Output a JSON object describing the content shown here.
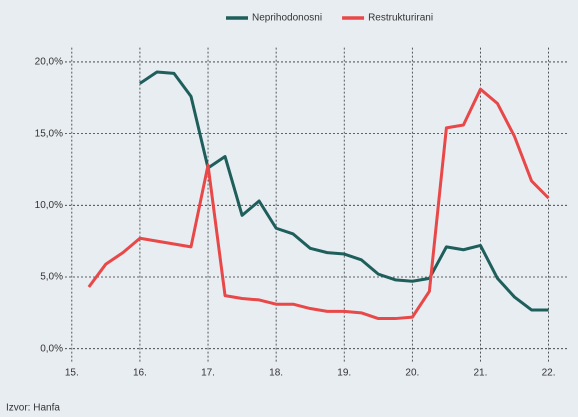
{
  "chart_data": {
    "type": "line",
    "x": [
      15.25,
      15.5,
      15.75,
      16,
      16.25,
      16.5,
      16.75,
      17,
      17.25,
      17.5,
      17.75,
      18,
      18.25,
      18.5,
      18.75,
      19,
      19.25,
      19.5,
      19.75,
      20,
      20.25,
      20.5,
      20.75,
      21,
      21.25,
      21.5,
      21.75,
      22
    ],
    "series": [
      {
        "name": "Neprihodonosni",
        "color": "#1e5e5b",
        "values": [
          null,
          null,
          null,
          18.5,
          19.3,
          19.2,
          17.6,
          12.6,
          13.4,
          9.3,
          10.3,
          8.4,
          8.0,
          7.0,
          6.7,
          6.6,
          6.2,
          5.2,
          4.8,
          4.7,
          4.9,
          7.1,
          6.9,
          7.2,
          4.9,
          3.6,
          2.7,
          2.7
        ]
      },
      {
        "name": "Restrukturirani",
        "color": "#e84848",
        "values": [
          4.3,
          5.9,
          6.7,
          7.7,
          7.5,
          7.3,
          7.1,
          12.8,
          3.7,
          3.5,
          3.4,
          3.1,
          3.1,
          2.8,
          2.6,
          2.6,
          2.5,
          2.1,
          2.1,
          2.2,
          4.0,
          15.4,
          15.6,
          18.1,
          17.1,
          14.8,
          11.7,
          10.5
        ]
      }
    ],
    "xlim": [
      14.9,
      22.3
    ],
    "xticks": [
      {
        "value": 15,
        "label": "15."
      },
      {
        "value": 16,
        "label": "16."
      },
      {
        "value": 17,
        "label": "17."
      },
      {
        "value": 18,
        "label": "18."
      },
      {
        "value": 19,
        "label": "19."
      },
      {
        "value": 20,
        "label": "20."
      },
      {
        "value": 21,
        "label": "21."
      },
      {
        "value": 22,
        "label": "22."
      }
    ],
    "ylim": [
      -1,
      21
    ],
    "yticks": [
      {
        "value": 0,
        "label": "0,0%"
      },
      {
        "value": 5,
        "label": "5,0%"
      },
      {
        "value": 10,
        "label": "10,0%"
      },
      {
        "value": 15,
        "label": "15,0%"
      },
      {
        "value": 20,
        "label": "20,0%"
      }
    ],
    "grid": true,
    "legend": "top",
    "source": "Izvor: Hanfa"
  }
}
